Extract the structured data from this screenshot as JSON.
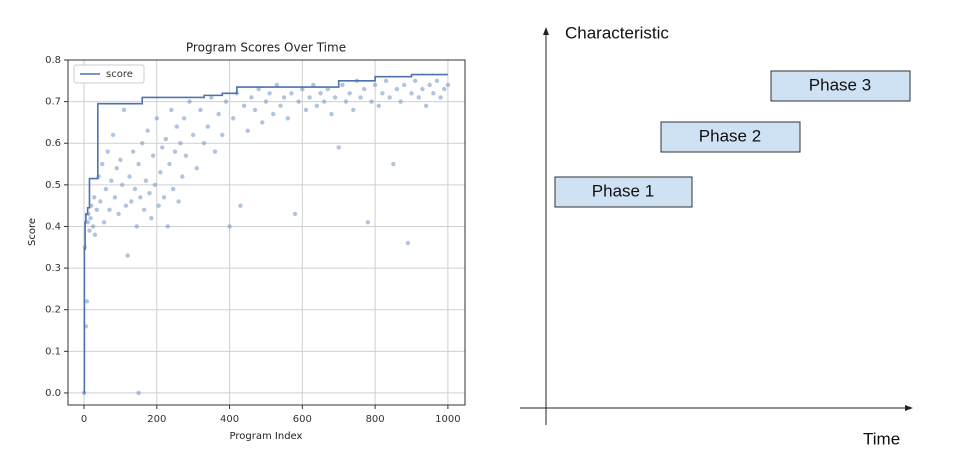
{
  "chart_data": {
    "type": "scatter",
    "title": "Program Scores Over Time",
    "x_label": "Program Index",
    "y_label": "Score",
    "xlim": [
      -44,
      1047
    ],
    "ylim": [
      -0.029,
      0.8
    ],
    "xticks": [
      0,
      200,
      400,
      600,
      800,
      1000
    ],
    "yticks": [
      {
        "value": 0,
        "label": "0.0"
      },
      0.1,
      0.2,
      0.3,
      0.4,
      0.5,
      0.6,
      0.7,
      0.8
    ],
    "grid": true,
    "legend": "upper left",
    "series": [
      {
        "name": "score",
        "type": "line",
        "drawstyle": "steps-post",
        "color": "#4c72b0",
        "x": [
          0,
          1,
          3,
          5,
          10,
          15,
          38,
          160,
          330,
          380,
          420,
          700,
          800,
          900,
          1000
        ],
        "values": [
          0,
          0.345,
          0.41,
          0.43,
          0.445,
          0.515,
          0.695,
          0.71,
          0.715,
          0.72,
          0.735,
          0.75,
          0.76,
          0.765,
          0.765
        ]
      },
      {
        "type": "scatter",
        "color": "#6f93c6",
        "x": [
          0,
          2,
          5,
          8,
          10,
          12,
          15,
          18,
          20,
          25,
          28,
          30,
          35,
          40,
          45,
          50,
          55,
          60,
          65,
          70,
          75,
          80,
          85,
          90,
          95,
          100,
          105,
          110,
          115,
          120,
          125,
          130,
          135,
          140,
          145,
          150,
          155,
          160,
          165,
          170,
          175,
          180,
          185,
          190,
          195,
          200,
          205,
          210,
          215,
          220,
          225,
          230,
          235,
          240,
          245,
          250,
          255,
          260,
          265,
          270,
          275,
          280,
          290,
          300,
          310,
          320,
          330,
          340,
          350,
          360,
          370,
          380,
          390,
          400,
          410,
          420,
          430,
          440,
          450,
          460,
          470,
          480,
          490,
          500,
          510,
          520,
          530,
          540,
          550,
          560,
          570,
          580,
          590,
          600,
          610,
          620,
          630,
          640,
          650,
          660,
          670,
          680,
          690,
          700,
          710,
          720,
          730,
          740,
          750,
          760,
          770,
          780,
          790,
          800,
          810,
          820,
          830,
          840,
          850,
          860,
          870,
          880,
          890,
          900,
          910,
          920,
          930,
          940,
          950,
          960,
          970,
          980,
          990,
          1000,
          150
        ],
        "values": [
          0,
          0.35,
          0.16,
          0.22,
          0.41,
          0.43,
          0.39,
          0.42,
          0.45,
          0.4,
          0.47,
          0.38,
          0.44,
          0.52,
          0.46,
          0.55,
          0.41,
          0.49,
          0.58,
          0.44,
          0.51,
          0.62,
          0.47,
          0.54,
          0.43,
          0.56,
          0.5,
          0.68,
          0.45,
          0.33,
          0.52,
          0.46,
          0.58,
          0.49,
          0.4,
          0.55,
          0.47,
          0.6,
          0.44,
          0.51,
          0.63,
          0.48,
          0.42,
          0.57,
          0.5,
          0.66,
          0.45,
          0.53,
          0.59,
          0.47,
          0.61,
          0.4,
          0.55,
          0.68,
          0.49,
          0.58,
          0.64,
          0.46,
          0.6,
          0.52,
          0.66,
          0.57,
          0.7,
          0.62,
          0.54,
          0.68,
          0.6,
          0.64,
          0.71,
          0.58,
          0.67,
          0.62,
          0.7,
          0.4,
          0.66,
          0.72,
          0.45,
          0.69,
          0.63,
          0.71,
          0.68,
          0.73,
          0.65,
          0.7,
          0.72,
          0.67,
          0.74,
          0.69,
          0.71,
          0.66,
          0.72,
          0.43,
          0.7,
          0.73,
          0.68,
          0.71,
          0.74,
          0.69,
          0.72,
          0.7,
          0.73,
          0.67,
          0.71,
          0.59,
          0.74,
          0.7,
          0.72,
          0.68,
          0.75,
          0.71,
          0.73,
          0.41,
          0.7,
          0.74,
          0.69,
          0.72,
          0.75,
          0.71,
          0.55,
          0.73,
          0.7,
          0.74,
          0.36,
          0.72,
          0.75,
          0.71,
          0.73,
          0.69,
          0.74,
          0.72,
          0.75,
          0.71,
          0.73,
          0.74,
          0
        ]
      }
    ]
  },
  "diagram": {
    "y_axis_label": "Characteristic",
    "x_axis_label": "Time",
    "boxes": [
      {
        "label": "Phase 1"
      },
      {
        "label": "Phase 2"
      },
      {
        "label": "Phase 3"
      }
    ]
  }
}
